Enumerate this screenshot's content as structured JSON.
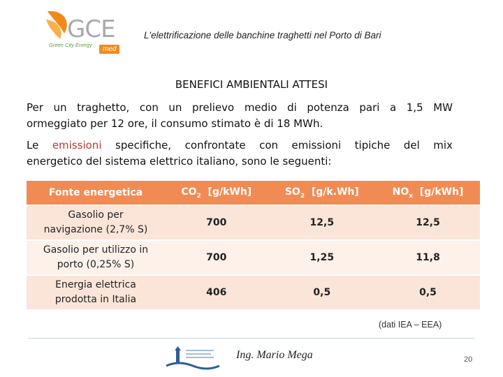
{
  "header": {
    "logo_text": "GCE",
    "logo_tagline": "Green City Energy",
    "logo_badge": "med",
    "title": "L'elettrificazione delle banchine traghetti nel Porto di Bari"
  },
  "section_title": "BENEFICI AMBIENTALI ATTESI",
  "paragraph1": {
    "line1": "Per un traghetto, con un prelievo medio di potenza pari a 1,5 MW",
    "line2": "ormeggiato per 12 ore, il consumo stimato è di 18 MWh."
  },
  "paragraph2": {
    "before": "Le",
    "highlight": "emissioni",
    "after": "specifiche, confrontate con emissioni tipiche del mix",
    "line2": "energetico del sistema elettrico italiano, sono le seguenti:"
  },
  "table": {
    "headers": {
      "source": "Fonte energetica",
      "co2_prefix": "CO",
      "co2_sub": "2",
      "co2_unit": "[g/kWh]",
      "so2_prefix": "SO",
      "so2_sub": "2",
      "so2_unit": "[g/k.Wh]",
      "nox_prefix": "NO",
      "nox_sub": "x",
      "nox_unit": "[g/kWh]"
    },
    "rows": [
      {
        "source_l1": "Gasolio per",
        "source_l2": "navigazione (2,7% S)",
        "co2": "700",
        "so2": "12,5",
        "nox": "12,5"
      },
      {
        "source_l1": "Gasolio per utilizzo in",
        "source_l2": "porto (0,25% S)",
        "co2": "700",
        "so2": "1,25",
        "nox": "11,8"
      },
      {
        "source_l1": "Energia elettrica",
        "source_l2": "prodotta in Italia",
        "co2": "406",
        "so2": "0,5",
        "nox": "0,5"
      }
    ]
  },
  "source_note": "(dati IEA – EEA)",
  "footer": {
    "author": "Ing. Mario Mega",
    "page_number": "20"
  },
  "colors": {
    "table_header": "#f28b53",
    "table_row": "#fbe5d9",
    "highlight": "#c0392b",
    "logo_orange": "#f28a1a"
  }
}
